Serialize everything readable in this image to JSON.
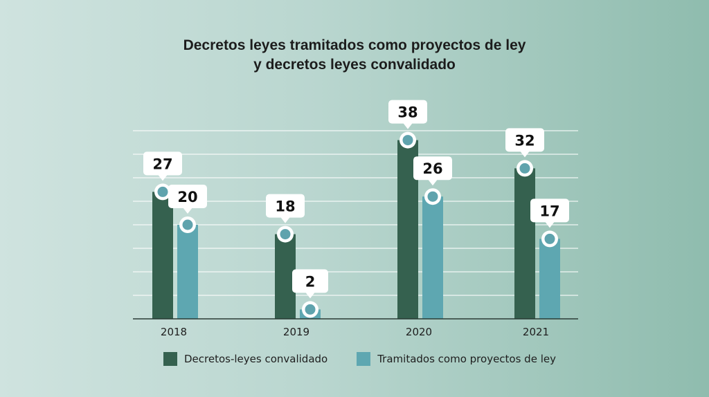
{
  "chart_data": {
    "type": "bar",
    "title_lines": [
      "Decretos leyes tramitados como proyectos de ley",
      "y decretos leyes convalidado"
    ],
    "categories": [
      "2018",
      "2019",
      "2020",
      "2021"
    ],
    "series": [
      {
        "name": "Decretos-leyes convalidado",
        "values": [
          27,
          18,
          38,
          32
        ],
        "color": "#35614f"
      },
      {
        "name": "Tramitados como proyectos de ley",
        "values": [
          20,
          2,
          26,
          17
        ],
        "color": "#5ea7b1"
      }
    ],
    "ylim": [
      0,
      40
    ],
    "grid": true,
    "legend": "bottom",
    "xlabel": "",
    "ylabel": ""
  }
}
